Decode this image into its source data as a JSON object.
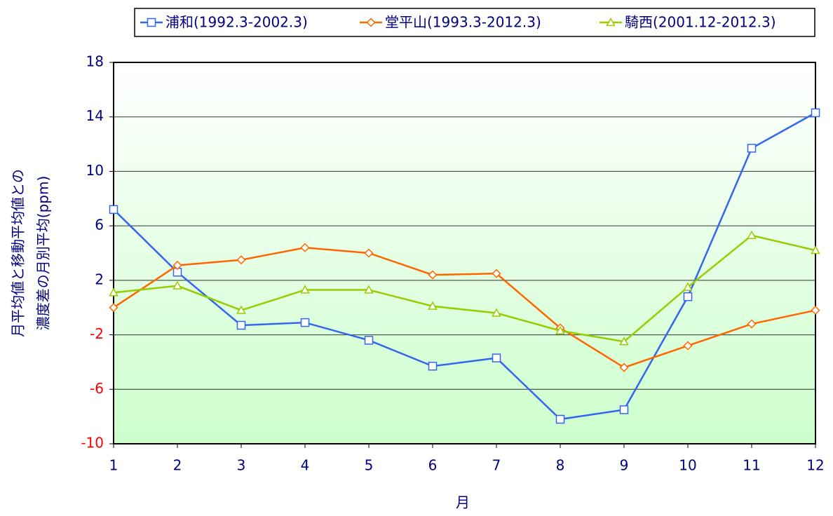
{
  "chart_data": {
    "type": "line",
    "x": [
      1,
      2,
      3,
      4,
      5,
      6,
      7,
      8,
      9,
      10,
      11,
      12
    ],
    "xlim": [
      1,
      12
    ],
    "xticks": [
      1,
      2,
      3,
      4,
      5,
      6,
      7,
      8,
      9,
      10,
      11,
      12
    ],
    "ylim": [
      -10,
      18
    ],
    "yticks": [
      18,
      14,
      10,
      6,
      2,
      -2,
      -6,
      -10
    ],
    "x_label": "月",
    "y_label": [
      "月平均値と移動平均値との",
      "濃度差の月別平均(ppm)"
    ],
    "grid": true,
    "legend": "top",
    "series": [
      {
        "name": "浦和(1992.3-2002.3)",
        "color": "#3366ee",
        "marker": "square",
        "values": [
          7.2,
          2.6,
          -1.3,
          -1.1,
          -2.4,
          -4.3,
          -3.7,
          -8.2,
          -7.5,
          0.8,
          11.7,
          14.3
        ]
      },
      {
        "name": "堂平山(1993.3-2012.3)",
        "color": "#ff6600",
        "marker": "diamond",
        "values": [
          0.0,
          3.1,
          3.5,
          4.4,
          4.0,
          2.4,
          2.5,
          -1.5,
          -4.4,
          -2.8,
          -1.2,
          -0.2
        ]
      },
      {
        "name": "騎西(2001.12-2012.3)",
        "color": "#99cc00",
        "marker": "triangle",
        "values": [
          1.1,
          1.6,
          -0.2,
          1.3,
          1.3,
          0.1,
          -0.4,
          -1.7,
          -2.5,
          1.5,
          5.3,
          4.2
        ]
      }
    ]
  }
}
